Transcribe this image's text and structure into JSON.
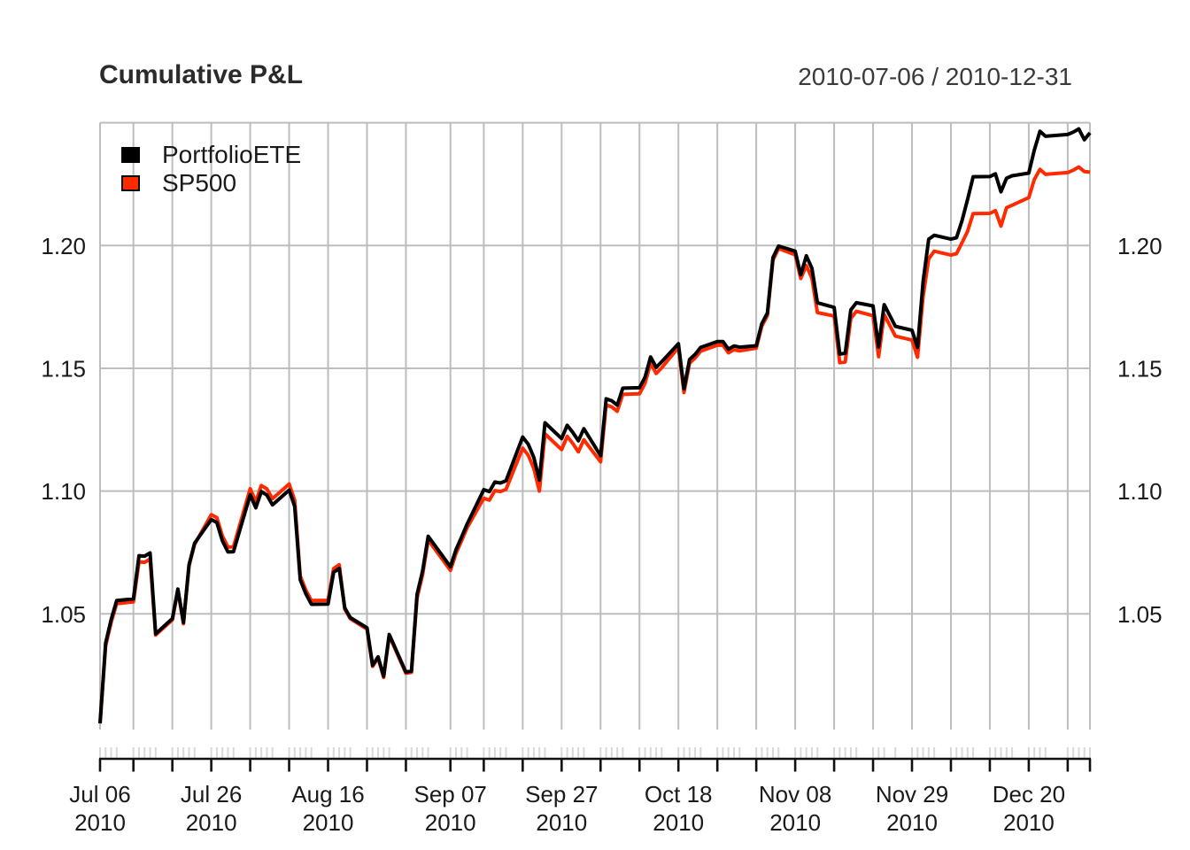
{
  "header": {
    "title": "Cumulative P&L",
    "date_range": "2010-07-06 / 2010-12-31"
  },
  "colors": {
    "portfolio_line": "#000000",
    "sp500_line": "#FF2A00",
    "gridline": "#bdbdbd",
    "minor_obs_tick": "#d9d9d9",
    "axis": "#111111",
    "label_text": "#1a1a1a"
  },
  "chart_data": {
    "type": "line",
    "title": "Cumulative P&L",
    "date_range_label": "2010-07-06 / 2010-12-31",
    "xlabel": "",
    "ylabel": "",
    "ylim": [
      1.0,
      1.25
    ],
    "grid": true,
    "legend_position": "topleft",
    "yticks": [
      1.05,
      1.1,
      1.15,
      1.2
    ],
    "ytick_labels": [
      "1.05",
      "1.10",
      "1.15",
      "1.20"
    ],
    "ytop_gridline": 1.25,
    "x_tick_labels": [
      {
        "label": "Jul 06",
        "year": "2010",
        "date": "2010-07-06"
      },
      {
        "label": "Jul 26",
        "year": "2010",
        "date": "2010-07-26"
      },
      {
        "label": "Aug 16",
        "year": "2010",
        "date": "2010-08-16"
      },
      {
        "label": "Sep 07",
        "year": "2010",
        "date": "2010-09-07"
      },
      {
        "label": "Sep 27",
        "year": "2010",
        "date": "2010-09-27"
      },
      {
        "label": "Oct 18",
        "year": "2010",
        "date": "2010-10-18"
      },
      {
        "label": "Nov 08",
        "year": "2010",
        "date": "2010-11-08"
      },
      {
        "label": "Nov 29",
        "year": "2010",
        "date": "2010-11-29"
      },
      {
        "label": "Dec 20",
        "year": "2010",
        "date": "2010-12-20"
      }
    ],
    "dates": [
      "2010-07-06",
      "2010-07-07",
      "2010-07-08",
      "2010-07-09",
      "2010-07-12",
      "2010-07-13",
      "2010-07-14",
      "2010-07-15",
      "2010-07-16",
      "2010-07-19",
      "2010-07-20",
      "2010-07-21",
      "2010-07-22",
      "2010-07-23",
      "2010-07-26",
      "2010-07-27",
      "2010-07-28",
      "2010-07-29",
      "2010-07-30",
      "2010-08-02",
      "2010-08-03",
      "2010-08-04",
      "2010-08-05",
      "2010-08-06",
      "2010-08-09",
      "2010-08-10",
      "2010-08-11",
      "2010-08-12",
      "2010-08-13",
      "2010-08-16",
      "2010-08-17",
      "2010-08-18",
      "2010-08-19",
      "2010-08-20",
      "2010-08-23",
      "2010-08-24",
      "2010-08-25",
      "2010-08-26",
      "2010-08-27",
      "2010-08-30",
      "2010-08-31",
      "2010-09-01",
      "2010-09-02",
      "2010-09-03",
      "2010-09-07",
      "2010-09-08",
      "2010-09-09",
      "2010-09-10",
      "2010-09-13",
      "2010-09-14",
      "2010-09-15",
      "2010-09-16",
      "2010-09-17",
      "2010-09-20",
      "2010-09-21",
      "2010-09-22",
      "2010-09-23",
      "2010-09-24",
      "2010-09-27",
      "2010-09-28",
      "2010-09-29",
      "2010-09-30",
      "2010-10-01",
      "2010-10-04",
      "2010-10-05",
      "2010-10-06",
      "2010-10-07",
      "2010-10-08",
      "2010-10-11",
      "2010-10-12",
      "2010-10-13",
      "2010-10-14",
      "2010-10-15",
      "2010-10-18",
      "2010-10-19",
      "2010-10-20",
      "2010-10-21",
      "2010-10-22",
      "2010-10-25",
      "2010-10-26",
      "2010-10-27",
      "2010-10-28",
      "2010-10-29",
      "2010-11-01",
      "2010-11-02",
      "2010-11-03",
      "2010-11-04",
      "2010-11-05",
      "2010-11-08",
      "2010-11-09",
      "2010-11-10",
      "2010-11-11",
      "2010-11-12",
      "2010-11-15",
      "2010-11-16",
      "2010-11-17",
      "2010-11-18",
      "2010-11-19",
      "2010-11-22",
      "2010-11-23",
      "2010-11-24",
      "2010-11-26",
      "2010-11-29",
      "2010-11-30",
      "2010-12-01",
      "2010-12-02",
      "2010-12-03",
      "2010-12-06",
      "2010-12-07",
      "2010-12-08",
      "2010-12-09",
      "2010-12-10",
      "2010-12-13",
      "2010-12-14",
      "2010-12-15",
      "2010-12-16",
      "2010-12-17",
      "2010-12-20",
      "2010-12-21",
      "2010-12-22",
      "2010-12-23",
      "2010-12-27",
      "2010-12-28",
      "2010-12-29",
      "2010-12-30",
      "2010-12-31"
    ],
    "series": [
      {
        "name": "PortfolioETE",
        "color": "#000000",
        "values": [
          1.0054,
          1.0381,
          1.0478,
          1.0554,
          1.0561,
          1.0737,
          1.0735,
          1.0748,
          1.0419,
          1.0481,
          1.0601,
          1.0465,
          1.07,
          1.0788,
          1.0884,
          1.0872,
          1.0797,
          1.0752,
          1.0753,
          1.0985,
          1.0932,
          1.0998,
          1.0984,
          1.0944,
          1.1004,
          1.0938,
          1.0639,
          1.0582,
          1.0539,
          1.054,
          1.0669,
          1.0685,
          1.0524,
          1.0485,
          1.0443,
          1.0291,
          1.0325,
          1.0246,
          1.0416,
          1.0263,
          1.0267,
          1.0579,
          1.0675,
          1.0816,
          1.0692,
          1.0761,
          1.0813,
          1.0865,
          1.1006,
          1.0998,
          1.1037,
          1.1033,
          1.1042,
          1.122,
          1.1191,
          1.1137,
          1.1045,
          1.1278,
          1.1214,
          1.1268,
          1.1239,
          1.1205,
          1.1254,
          1.1144,
          1.1376,
          1.1368,
          1.135,
          1.1419,
          1.1421,
          1.1464,
          1.1546,
          1.1504,
          1.1527,
          1.16,
          1.1416,
          1.1536,
          1.1557,
          1.1585,
          1.1609,
          1.1609,
          1.1578,
          1.1591,
          1.1586,
          1.1592,
          1.1682,
          1.1725,
          1.1951,
          1.1998,
          1.1977,
          1.1881,
          1.1958,
          1.1907,
          1.1767,
          1.1748,
          1.1558,
          1.1561,
          1.1738,
          1.1767,
          1.1754,
          1.1587,
          1.1759,
          1.1671,
          1.1655,
          1.1585,
          1.1854,
          1.2026,
          1.2042,
          1.2026,
          1.2032,
          1.2101,
          1.2188,
          1.228,
          1.2281,
          1.2292,
          1.2219,
          1.2274,
          1.2284,
          1.2295,
          1.2389,
          1.2465,
          1.2445,
          1.2452,
          1.2462,
          1.2475,
          1.2431,
          1.2459
        ]
      },
      {
        "name": "SP500",
        "color": "#FF2A00",
        "values": [
          1.0054,
          1.0369,
          1.0466,
          1.0542,
          1.0549,
          1.0712,
          1.071,
          1.0723,
          1.0414,
          1.0476,
          1.0596,
          1.046,
          1.0695,
          1.0783,
          1.0904,
          1.0892,
          1.0817,
          1.0772,
          1.0773,
          1.101,
          1.0957,
          1.1023,
          1.1009,
          1.0969,
          1.1029,
          1.0963,
          1.0654,
          1.0597,
          1.0554,
          1.0555,
          1.0684,
          1.07,
          1.0519,
          1.048,
          1.0438,
          1.0286,
          1.032,
          1.0241,
          1.0411,
          1.0258,
          1.0262,
          1.0564,
          1.066,
          1.0801,
          1.0677,
          1.0746,
          1.0798,
          1.085,
          1.0971,
          1.0963,
          1.1002,
          1.0998,
          1.1007,
          1.1175,
          1.1146,
          1.1092,
          1.1,
          1.1233,
          1.1169,
          1.1223,
          1.1194,
          1.116,
          1.1209,
          1.1119,
          1.1351,
          1.1343,
          1.1325,
          1.1394,
          1.1396,
          1.1439,
          1.1521,
          1.1479,
          1.1502,
          1.1585,
          1.1401,
          1.1521,
          1.1542,
          1.157,
          1.1594,
          1.1594,
          1.1563,
          1.1576,
          1.1571,
          1.1582,
          1.1672,
          1.1715,
          1.1941,
          1.1988,
          1.1962,
          1.1866,
          1.1918,
          1.1867,
          1.1727,
          1.1713,
          1.1523,
          1.1526,
          1.1703,
          1.1732,
          1.1714,
          1.1547,
          1.1719,
          1.1631,
          1.1615,
          1.1545,
          1.1794,
          1.1946,
          1.1977,
          1.1961,
          1.1967,
          1.2011,
          1.2058,
          1.213,
          1.2131,
          1.2142,
          1.2079,
          1.2154,
          1.2164,
          1.2195,
          1.2269,
          1.231,
          1.229,
          1.2297,
          1.2307,
          1.232,
          1.2301,
          1.2299
        ]
      }
    ]
  }
}
